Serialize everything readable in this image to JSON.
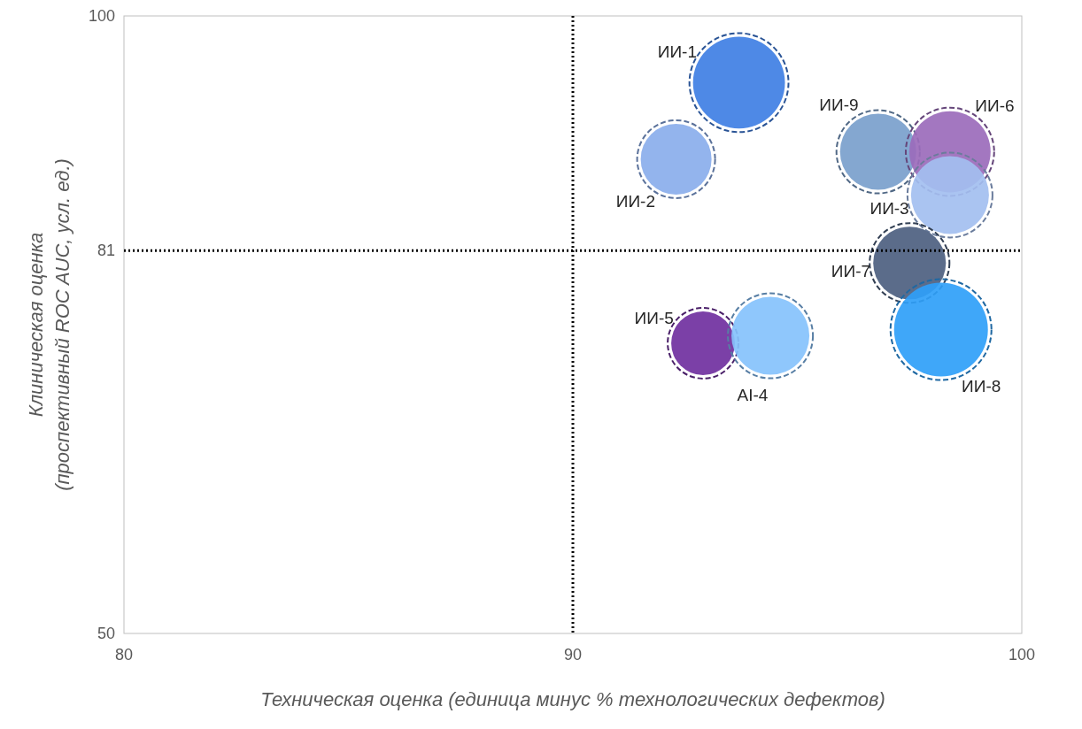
{
  "chart_data": {
    "type": "bubble",
    "xlabel": "Техническая оценка (единица минус % технологических дефектов)",
    "ylabel": "Клиническая оценка (проспективный ROC AUC, усл. ед.)",
    "xlim": [
      80,
      100
    ],
    "ylim": [
      50,
      100
    ],
    "xticks": [
      80,
      90,
      100
    ],
    "yticks": [
      50,
      81,
      100
    ],
    "grid": false,
    "series": [
      {
        "name": "ИИ-1",
        "color": "#3f7fe4",
        "x": [
          93.7
        ],
        "values": [
          94.6
        ],
        "sizes": [
          0.96
        ]
      },
      {
        "name": "ИИ-2",
        "color": "#8aaeec",
        "x": [
          92.3
        ],
        "values": [
          88.4
        ],
        "sizes": [
          0.57
        ]
      },
      {
        "name": "ИИ-9",
        "color": "#7aa0cc",
        "x": [
          96.8
        ],
        "values": [
          89.0
        ],
        "sizes": [
          0.66
        ]
      },
      {
        "name": "ИИ-6",
        "color": "#9b6bbb",
        "x": [
          98.4
        ],
        "values": [
          89.0
        ],
        "sizes": [
          0.75
        ]
      },
      {
        "name": "ИИ-3",
        "color": "#a3bff0",
        "x": [
          98.4
        ],
        "values": [
          85.5
        ],
        "sizes": [
          0.69
        ]
      },
      {
        "name": "ИИ-7",
        "color": "#4d6080",
        "x": [
          97.5
        ],
        "values": [
          80.0
        ],
        "sizes": [
          0.6
        ]
      },
      {
        "name": "ИИ-8",
        "color": "#2f9ff8",
        "x": [
          98.2
        ],
        "values": [
          74.6
        ],
        "sizes": [
          1
        ]
      },
      {
        "name": "ИИ-5",
        "color": "#7030a0",
        "x": [
          92.9
        ],
        "values": [
          73.5
        ],
        "sizes": [
          0.46
        ]
      },
      {
        "name": "AI-4",
        "color": "#85c2fc",
        "x": [
          94.4
        ],
        "values": [
          74.1
        ],
        "sizes": [
          0.69
        ]
      }
    ],
    "ref_lines": [
      {
        "axis": "x",
        "value": 90,
        "line_style": "dotted",
        "color": "#000000"
      },
      {
        "axis": "y",
        "value": 81,
        "line_style": "dotted",
        "color": "#000000"
      }
    ]
  }
}
